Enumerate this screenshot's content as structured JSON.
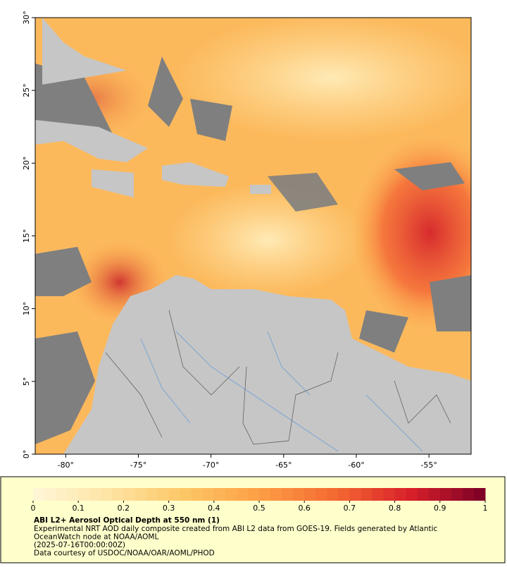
{
  "map": {
    "lon_range": [
      -82.1,
      -52.1
    ],
    "lat_range": [
      0,
      30
    ],
    "lon_ticks": [
      {
        "value": -80,
        "label": "-80°"
      },
      {
        "value": -75,
        "label": "-75°"
      },
      {
        "value": -70,
        "label": "-70°"
      },
      {
        "value": -65,
        "label": "-65°"
      },
      {
        "value": -60,
        "label": "-60°"
      },
      {
        "value": -55,
        "label": "-55°"
      }
    ],
    "lat_ticks": [
      {
        "value": 0,
        "label": "0°"
      },
      {
        "value": 5,
        "label": "5°"
      },
      {
        "value": 10,
        "label": "10°"
      },
      {
        "value": 15,
        "label": "15°"
      },
      {
        "value": 20,
        "label": "20°"
      },
      {
        "value": 25,
        "label": "25°"
      },
      {
        "value": 30,
        "label": "30°"
      }
    ]
  },
  "colorbar": {
    "range": [
      0,
      1
    ],
    "ticks": [
      0,
      0.1,
      0.2,
      0.3,
      0.4,
      0.5,
      0.6,
      0.7,
      0.8,
      0.9,
      1
    ],
    "steps": 40,
    "colors": [
      "#fff6d8",
      "#fee4a4",
      "#fdc766",
      "#fd9f45",
      "#f46a32",
      "#d9202a",
      "#7a0026"
    ]
  },
  "caption": {
    "title": "ABI L2+ Aerosol Optical Depth at 550 nm (1)",
    "lines": [
      "Experimental NRT AOD daily composite created from ABI L2 data from GOES-19. Fields generated by Atlantic",
      "OceanWatch node at NOAA/AOML",
      "(2025-07-16T00:00:00Z)",
      "Data courtesy of USDOC/NOAA/OAR/AOML/PHOD"
    ]
  }
}
